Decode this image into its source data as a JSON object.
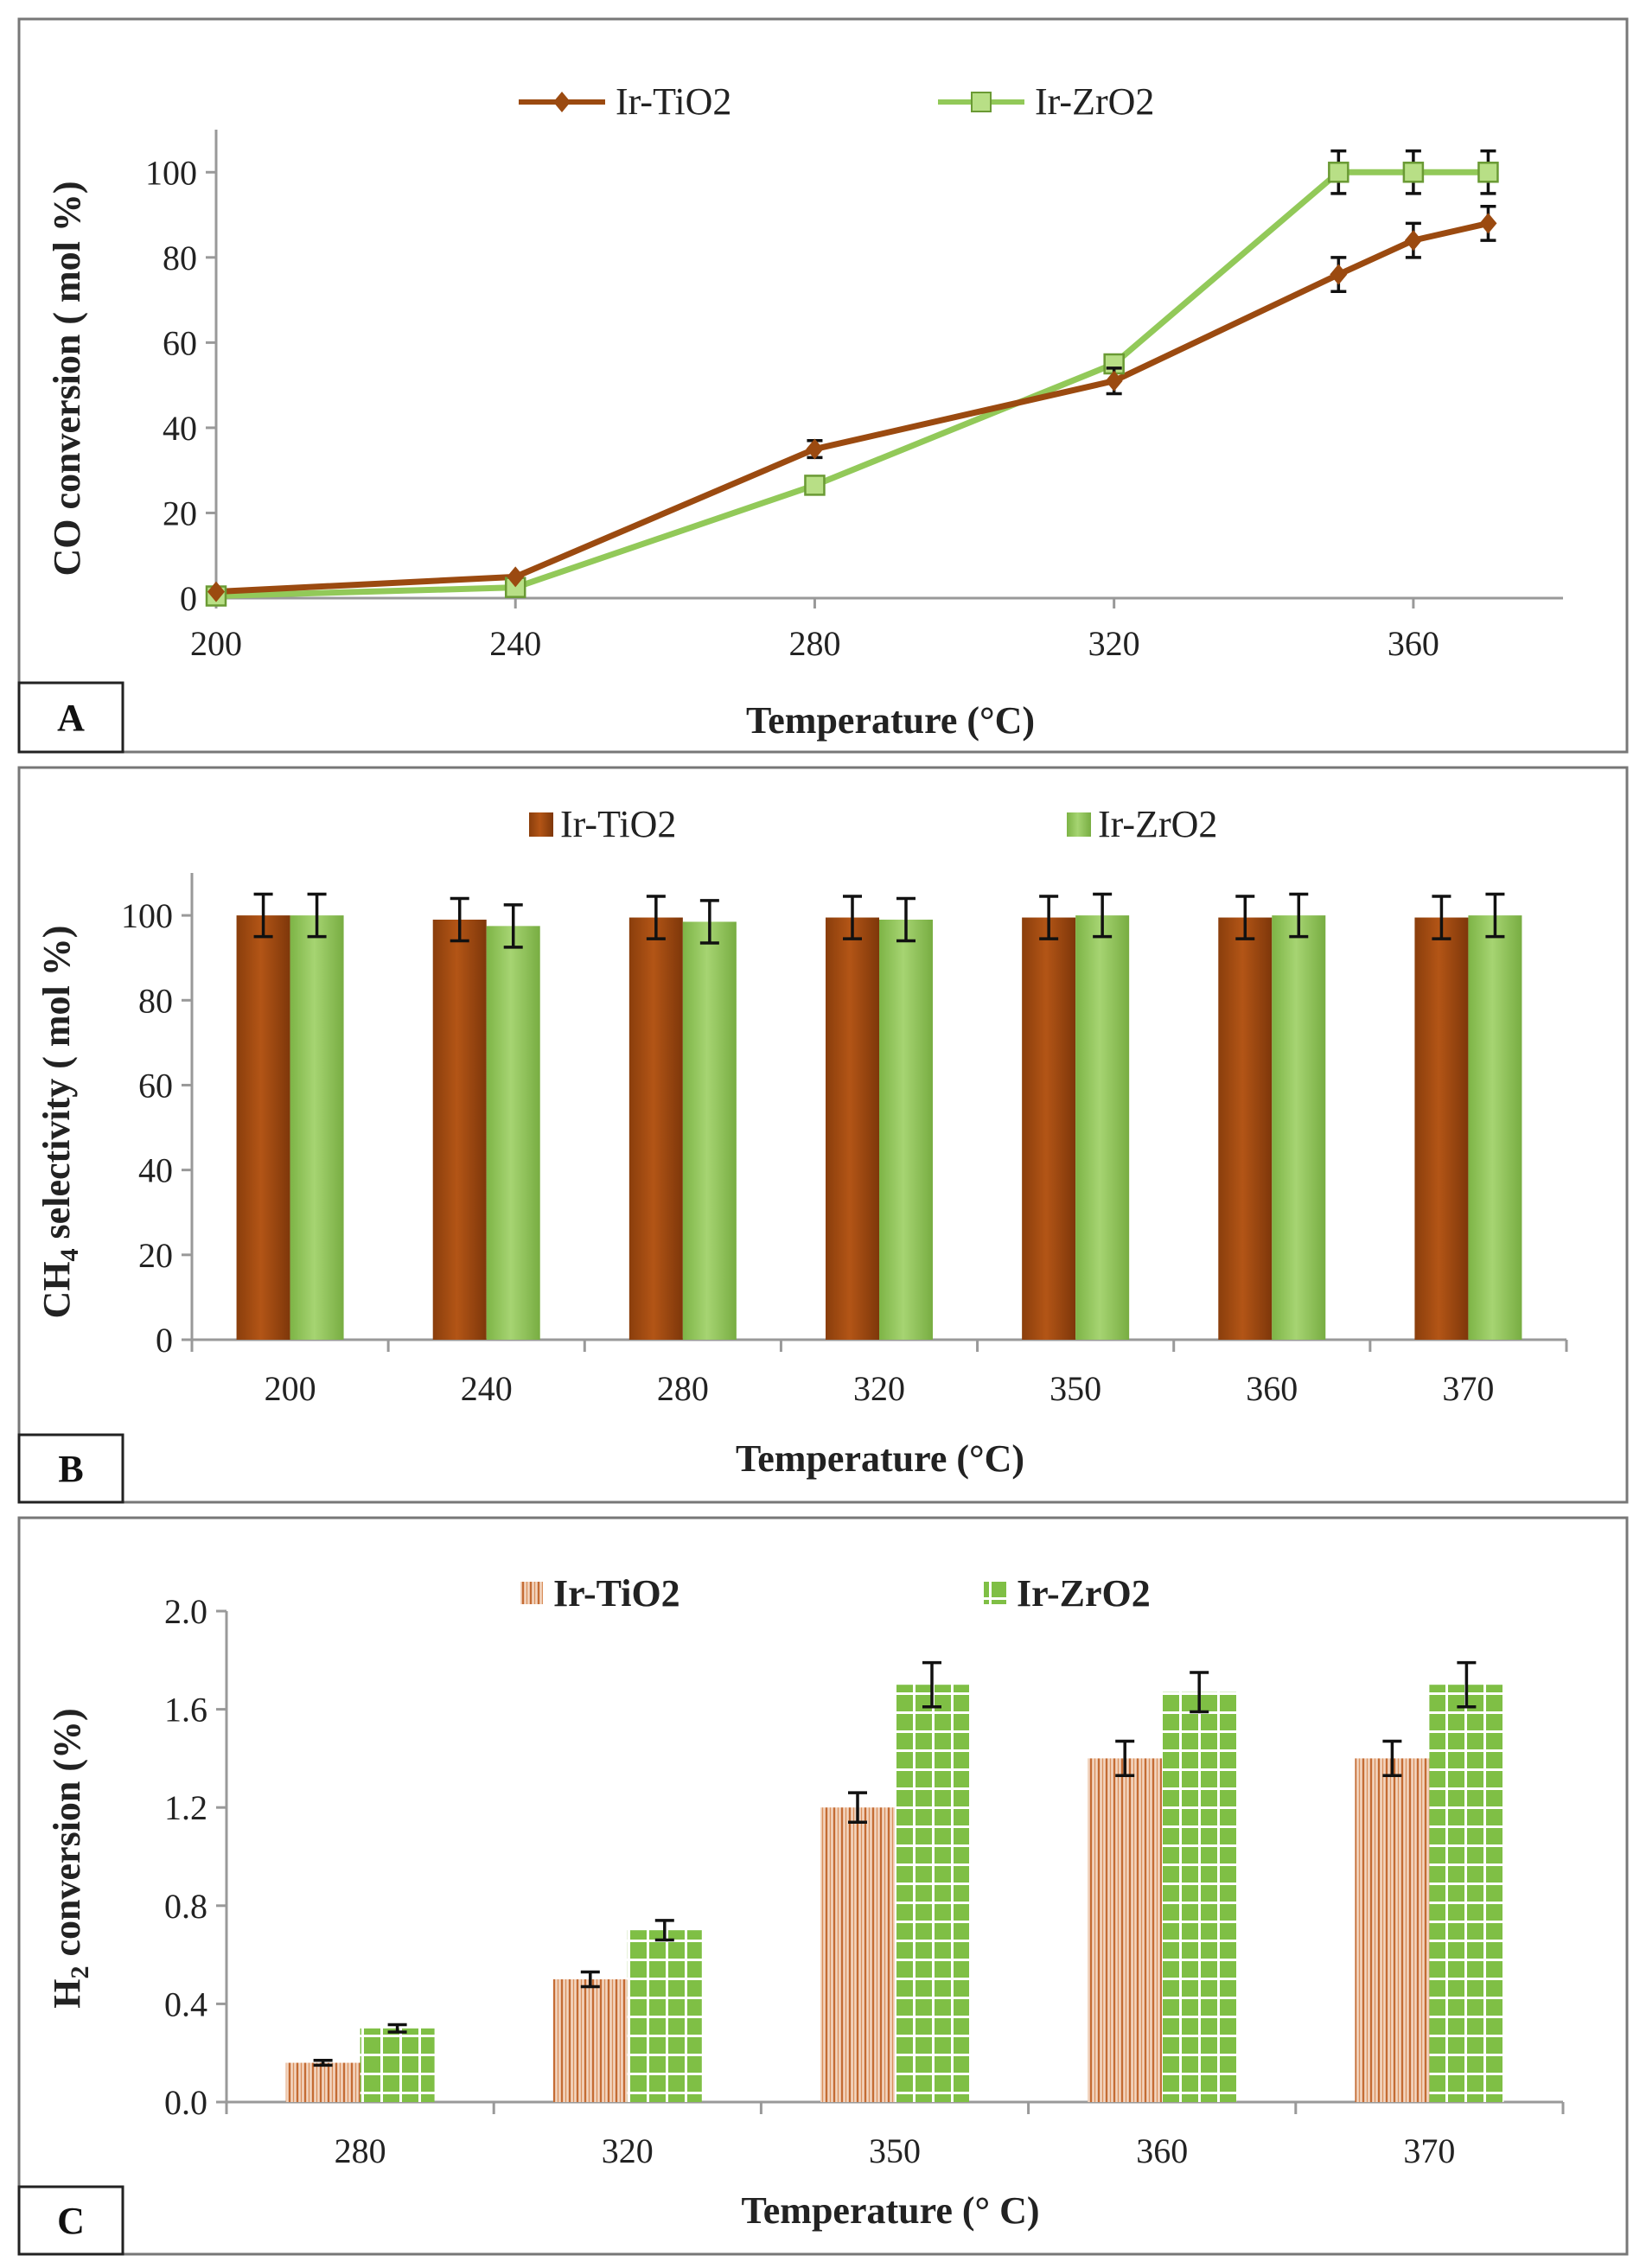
{
  "colors": {
    "ti": "#9b4a10",
    "ti_light": "#c05e18",
    "zr": "#8cc152",
    "zr_light": "#b8df86",
    "zr_line": "#92c959",
    "ti_hatch_bg": "#f4d8c4",
    "ti_hatch_line": "#c9743e",
    "zr_grid_bg": "#86c44c"
  },
  "chart_data": [
    {
      "panel": "A",
      "type": "line",
      "xlabel": "Temperature (°C)",
      "ylabel": "CO conversion ( mol %)",
      "xlim": [
        200,
        380
      ],
      "ylim": [
        0,
        110
      ],
      "x_ticks": [
        "200",
        "240",
        "280",
        "320",
        "360"
      ],
      "y_ticks": [
        "0",
        "20",
        "40",
        "60",
        "80",
        "100"
      ],
      "legend_position": "top",
      "series": [
        {
          "name": "Ir-TiO2",
          "marker": "diamond",
          "x": [
            200,
            240,
            280,
            320,
            350,
            360,
            370
          ],
          "values": [
            1.5,
            5,
            35,
            51,
            76,
            84,
            88
          ],
          "errors": [
            0,
            0,
            2,
            3,
            4,
            4,
            4
          ]
        },
        {
          "name": "Ir-ZrO2",
          "marker": "square",
          "x": [
            200,
            240,
            280,
            320,
            350,
            360,
            370
          ],
          "values": [
            0.5,
            2.5,
            26.5,
            55,
            100,
            100,
            100
          ],
          "errors": [
            0,
            0,
            0,
            2,
            5,
            5,
            5
          ]
        }
      ]
    },
    {
      "panel": "B",
      "type": "bar",
      "xlabel": "Temperature (°C)",
      "ylabel_main": "CH",
      "ylabel_sub": "4",
      "ylabel_rest": " selectivity ( mol %)",
      "ylim": [
        0,
        110
      ],
      "y_ticks": [
        "0",
        "20",
        "40",
        "60",
        "80",
        "100"
      ],
      "categories": [
        "200",
        "240",
        "280",
        "320",
        "350",
        "360",
        "370"
      ],
      "legend_position": "top",
      "series": [
        {
          "name": "Ir-TiO2",
          "values": [
            100,
            99,
            99.5,
            99.5,
            99.5,
            99.5,
            99.5
          ],
          "errors": [
            5,
            5,
            5,
            5,
            5,
            5,
            5
          ]
        },
        {
          "name": "Ir-ZrO2",
          "values": [
            100,
            97.5,
            98.5,
            99,
            100,
            100,
            100
          ],
          "errors": [
            5,
            5,
            5,
            5,
            5,
            5,
            5
          ]
        }
      ]
    },
    {
      "panel": "C",
      "type": "bar",
      "xlabel": "Temperature (° C)",
      "ylabel_main": "H",
      "ylabel_sub": "2",
      "ylabel_rest": " conversion (%)",
      "ylim": [
        0,
        2.0
      ],
      "y_ticks": [
        "0.0",
        "0.4",
        "0.8",
        "1.2",
        "1.6",
        "2.0"
      ],
      "categories": [
        "280",
        "320",
        "350",
        "360",
        "370"
      ],
      "legend_position": "top",
      "series": [
        {
          "name": "Ir-TiO2",
          "values": [
            0.16,
            0.5,
            1.2,
            1.4,
            1.4
          ],
          "errors": [
            0.01,
            0.03,
            0.06,
            0.07,
            0.07
          ]
        },
        {
          "name": "Ir-ZrO2",
          "values": [
            0.3,
            0.7,
            1.7,
            1.67,
            1.7
          ],
          "errors": [
            0.015,
            0.04,
            0.09,
            0.08,
            0.09
          ]
        }
      ]
    }
  ]
}
